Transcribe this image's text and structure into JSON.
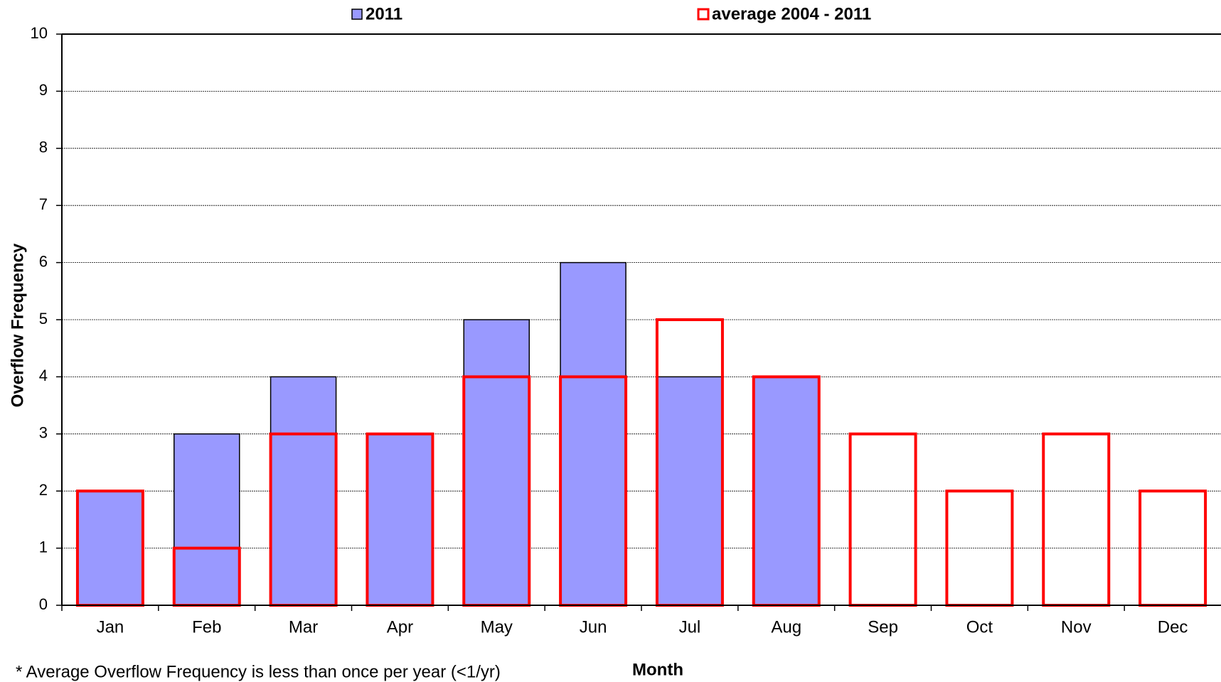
{
  "chart_data": {
    "type": "bar",
    "y_label": "Overflow Frequency",
    "x_label": "Month",
    "annotation": "* Average Overflow Frequency is less than once per year (<1/yr)",
    "categories": [
      "Jan",
      "Feb",
      "Mar",
      "Apr",
      "May",
      "Jun",
      "Jul",
      "Aug",
      "Sep",
      "Oct",
      "Nov",
      "Dec"
    ],
    "series": [
      {
        "name": "2011",
        "color": "#9999ff",
        "fill": "solid",
        "values": [
          2,
          3,
          4,
          3,
          5,
          6,
          4,
          4,
          null,
          null,
          null,
          null
        ]
      },
      {
        "name": "average 2004 - 2011",
        "color": "#ff0000",
        "fill": "outline",
        "values": [
          2,
          1,
          3,
          3,
          4,
          4,
          5,
          4,
          3,
          2,
          3,
          2
        ]
      }
    ],
    "ylim": [
      0,
      10
    ],
    "yticks": [
      0,
      1,
      2,
      3,
      4,
      5,
      6,
      7,
      8,
      9,
      10
    ],
    "grid": true,
    "legend": "top"
  }
}
